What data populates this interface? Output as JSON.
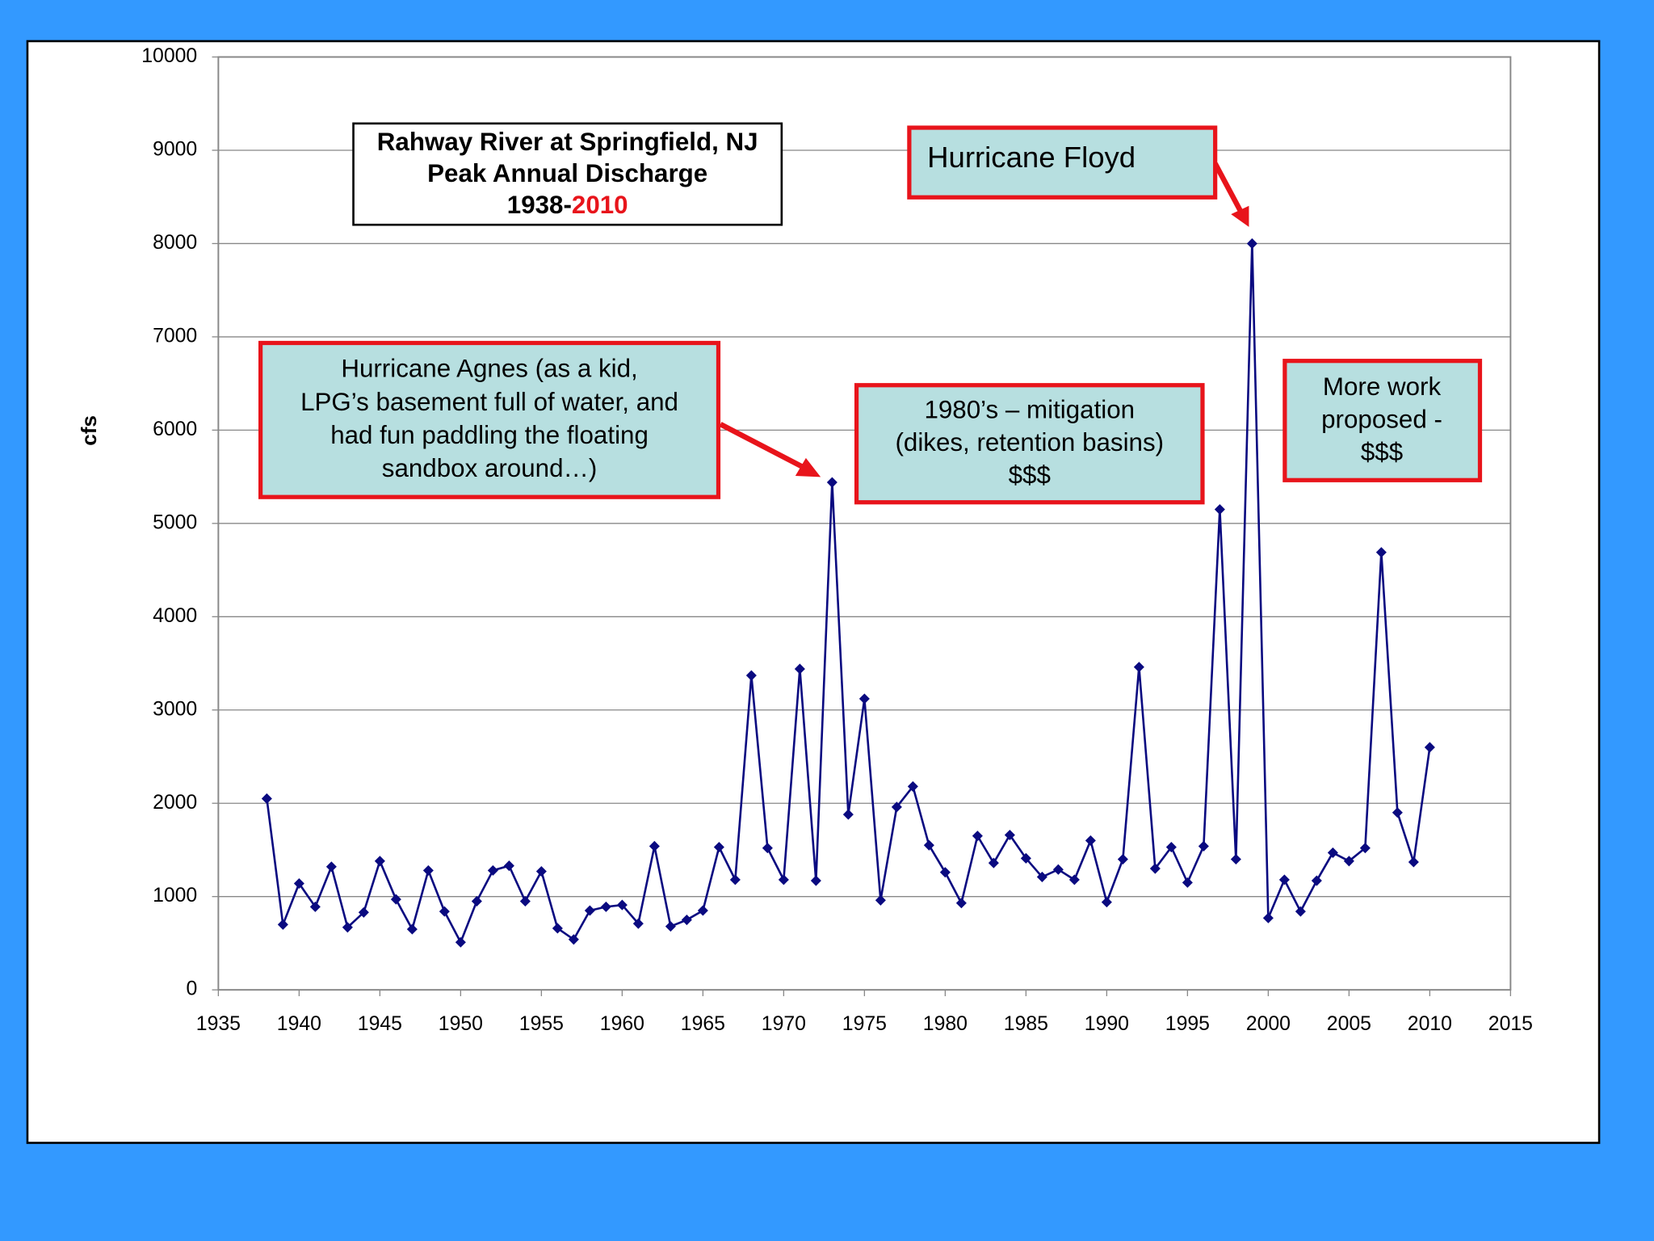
{
  "chart_data": {
    "type": "line",
    "title": [
      "Rahway River at Springfield, NJ",
      "Peak Annual Discharge"
    ],
    "title_years": [
      "1938-",
      "2010"
    ],
    "y_label": "cfs",
    "x": [
      1938,
      1939,
      1940,
      1941,
      1942,
      1943,
      1944,
      1945,
      1946,
      1947,
      1948,
      1949,
      1950,
      1951,
      1952,
      1953,
      1954,
      1955,
      1956,
      1957,
      1958,
      1959,
      1960,
      1961,
      1962,
      1963,
      1964,
      1965,
      1966,
      1967,
      1968,
      1969,
      1970,
      1971,
      1972,
      1973,
      1974,
      1975,
      1976,
      1977,
      1978,
      1979,
      1980,
      1981,
      1982,
      1983,
      1984,
      1985,
      1986,
      1987,
      1988,
      1989,
      1990,
      1991,
      1992,
      1993,
      1994,
      1995,
      1996,
      1997,
      1998,
      1999,
      2000,
      2001,
      2002,
      2003,
      2004,
      2005,
      2006,
      2007,
      2008,
      2009,
      2010
    ],
    "values": [
      2050,
      700,
      1140,
      890,
      1320,
      670,
      830,
      1380,
      970,
      650,
      1280,
      840,
      510,
      950,
      1280,
      1330,
      950,
      1270,
      660,
      540,
      850,
      890,
      910,
      710,
      1540,
      680,
      750,
      850,
      1530,
      1180,
      3370,
      1520,
      1180,
      3440,
      1170,
      5440,
      1880,
      3120,
      960,
      1960,
      2180,
      1550,
      1260,
      930,
      1650,
      1360,
      1660,
      1410,
      1210,
      1290,
      1180,
      1600,
      940,
      1400,
      3460,
      1300,
      1530,
      1150,
      1540,
      5150,
      1400,
      8000,
      770,
      1180,
      840,
      1170,
      1470,
      1380,
      1520,
      4690,
      1900,
      1370,
      2600
    ],
    "color": "#0a0a80",
    "xlim": [
      1935,
      2015
    ],
    "xticks": [
      1935,
      1940,
      1945,
      1950,
      1955,
      1960,
      1965,
      1970,
      1975,
      1980,
      1985,
      1990,
      1995,
      2000,
      2005,
      2010,
      2015
    ],
    "ylim": [
      0,
      10000
    ],
    "yticks": [
      0,
      1000,
      2000,
      3000,
      4000,
      5000,
      6000,
      7000,
      8000,
      9000,
      10000
    ],
    "grid": true,
    "annotations": [
      {
        "lines": [
          "Hurricane Agnes (as a kid,",
          "LPG’s basement full of water, and",
          "had fun paddling the floating",
          "sandbox around…)"
        ]
      },
      {
        "lines": [
          "1980’s – mitigation",
          "(dikes, retention basins)",
          "$$$"
        ]
      },
      {
        "lines": [
          "Hurricane Floyd"
        ]
      },
      {
        "lines": [
          "More work",
          "proposed -",
          "$$$"
        ]
      }
    ]
  }
}
